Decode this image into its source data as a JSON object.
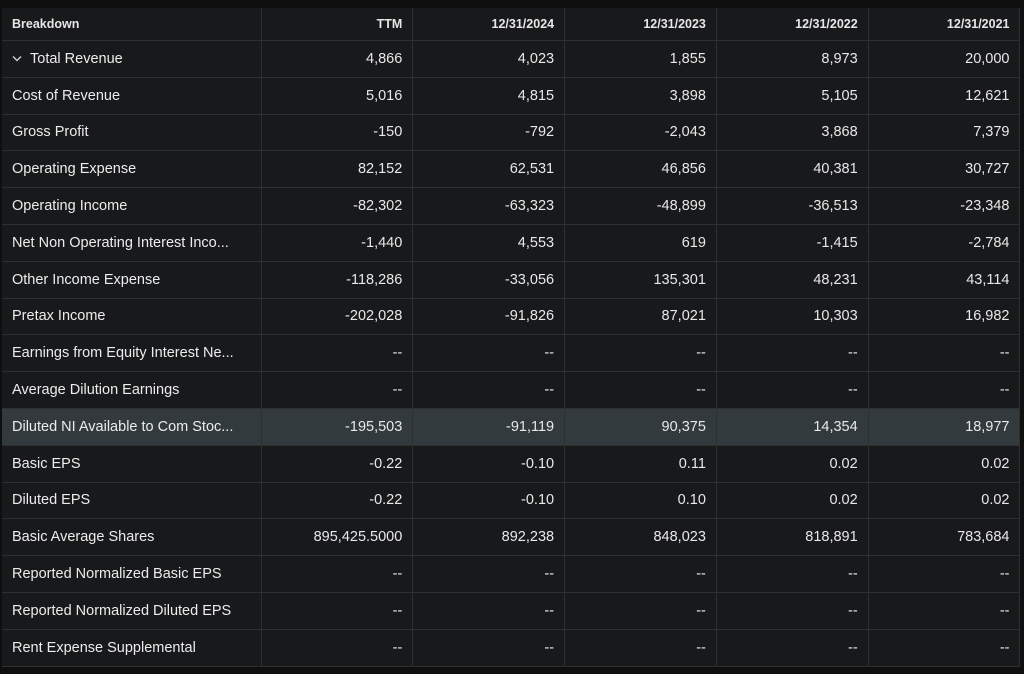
{
  "table": {
    "columns": [
      "Breakdown",
      "TTM",
      "12/31/2024",
      "12/31/2023",
      "12/31/2022",
      "12/31/2021"
    ],
    "rows": [
      {
        "label": "Total Revenue",
        "values": [
          "4,866",
          "4,023",
          "1,855",
          "8,973",
          "20,000"
        ]
      },
      {
        "label": "Cost of Revenue",
        "values": [
          "5,016",
          "4,815",
          "3,898",
          "5,105",
          "12,621"
        ]
      },
      {
        "label": "Gross Profit",
        "values": [
          "-150",
          "-792",
          "-2,043",
          "3,868",
          "7,379"
        ]
      },
      {
        "label": "Operating Expense",
        "values": [
          "82,152",
          "62,531",
          "46,856",
          "40,381",
          "30,727"
        ]
      },
      {
        "label": "Operating Income",
        "values": [
          "-82,302",
          "-63,323",
          "-48,899",
          "-36,513",
          "-23,348"
        ]
      },
      {
        "label": "Net Non Operating Interest Inco...",
        "values": [
          "-1,440",
          "4,553",
          "619",
          "-1,415",
          "-2,784"
        ]
      },
      {
        "label": "Other Income Expense",
        "values": [
          "-118,286",
          "-33,056",
          "135,301",
          "48,231",
          "43,114"
        ]
      },
      {
        "label": "Pretax Income",
        "values": [
          "-202,028",
          "-91,826",
          "87,021",
          "10,303",
          "16,982"
        ]
      },
      {
        "label": "Earnings from Equity Interest Ne...",
        "values": [
          "--",
          "--",
          "--",
          "--",
          "--"
        ]
      },
      {
        "label": "Average Dilution Earnings",
        "values": [
          "--",
          "--",
          "--",
          "--",
          "--"
        ]
      },
      {
        "label": "Diluted NI Available to Com Stoc...",
        "values": [
          "-195,503",
          "-91,119",
          "90,375",
          "14,354",
          "18,977"
        ]
      },
      {
        "label": "Basic EPS",
        "values": [
          "-0.22",
          "-0.10",
          "0.11",
          "0.02",
          "0.02"
        ]
      },
      {
        "label": "Diluted EPS",
        "values": [
          "-0.22",
          "-0.10",
          "0.10",
          "0.02",
          "0.02"
        ]
      },
      {
        "label": "Basic Average Shares",
        "values": [
          "895,425.5000",
          "892,238",
          "848,023",
          "818,891",
          "783,684"
        ]
      },
      {
        "label": "Reported Normalized Basic EPS",
        "values": [
          "--",
          "--",
          "--",
          "--",
          "--"
        ]
      },
      {
        "label": "Reported Normalized Diluted EPS",
        "values": [
          "--",
          "--",
          "--",
          "--",
          "--"
        ]
      },
      {
        "label": "Rent Expense Supplemental",
        "values": [
          "--",
          "--",
          "--",
          "--",
          "--"
        ]
      }
    ]
  },
  "icons": {
    "expand_toggle": "chevron-down-icon"
  },
  "colors": {
    "background": "#18191b",
    "highlight_row": "#333a3d",
    "grid_line": "#2e2f31"
  }
}
